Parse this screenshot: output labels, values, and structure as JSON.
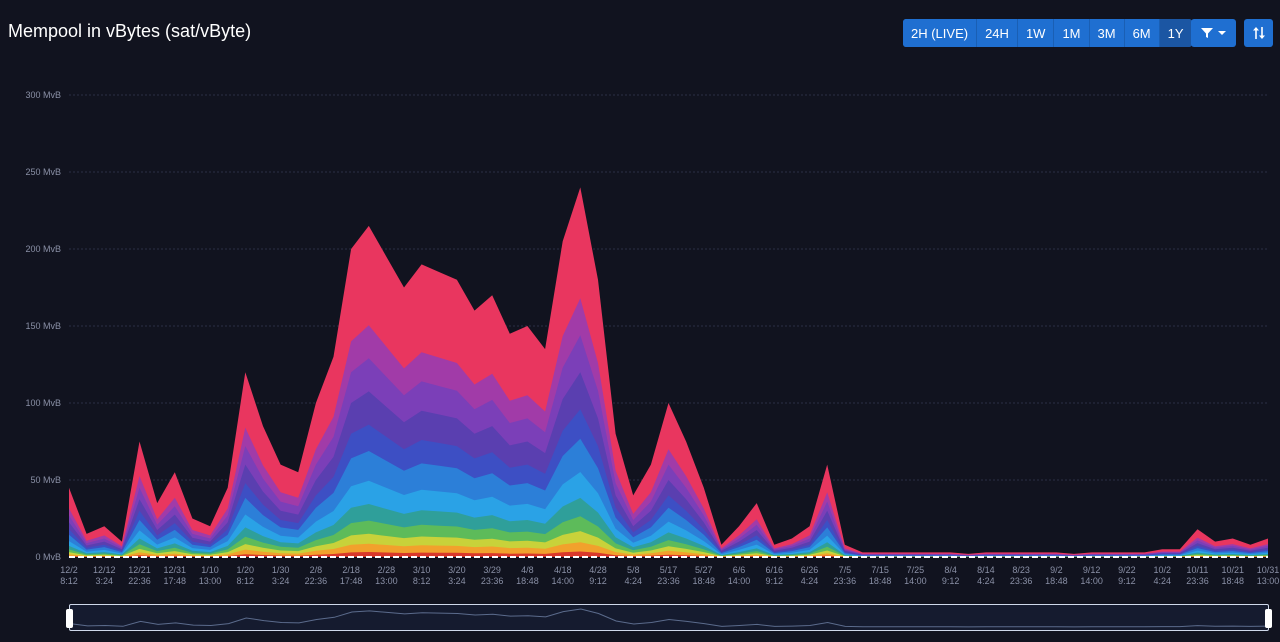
{
  "header": {
    "title": "Mempool in vBytes (sat/vByte)",
    "ranges": [
      {
        "label": "2H (LIVE)",
        "active": false
      },
      {
        "label": "24H",
        "active": false
      },
      {
        "label": "1W",
        "active": false
      },
      {
        "label": "1M",
        "active": false
      },
      {
        "label": "3M",
        "active": false
      },
      {
        "label": "6M",
        "active": false
      },
      {
        "label": "1Y",
        "active": true
      }
    ],
    "filter_icon": "filter-icon",
    "sort_icon": "sort-arrows-icon"
  },
  "colors": {
    "background": "#11131f",
    "accent": "#1f6fd1",
    "bands": [
      "#e9365f",
      "#a13ba8",
      "#7b3fb8",
      "#5a3fb0",
      "#3d4fc4",
      "#2c7fd8",
      "#2aa2e6",
      "#2f9f9a",
      "#5dbb5a",
      "#c8d23a",
      "#f2a12c",
      "#d9382a"
    ]
  },
  "chart_data": {
    "type": "area",
    "stacked": true,
    "title": "Mempool in vBytes (sat/vByte)",
    "ylabel": "",
    "y_unit": "MvB",
    "ylim": [
      0,
      300
    ],
    "yticks": [
      "0 MvB",
      "50 MvB",
      "100 MvB",
      "150 MvB",
      "200 MvB",
      "250 MvB",
      "300 MvB"
    ],
    "grid": true,
    "x_tick_labels": [
      [
        "12/2",
        "8:12"
      ],
      [
        "12/12",
        "3:24"
      ],
      [
        "12/21",
        "22:36"
      ],
      [
        "12/31",
        "17:48"
      ],
      [
        "1/10",
        "13:00"
      ],
      [
        "1/20",
        "8:12"
      ],
      [
        "1/30",
        "3:24"
      ],
      [
        "2/8",
        "22:36"
      ],
      [
        "2/18",
        "17:48"
      ],
      [
        "2/28",
        "13:00"
      ],
      [
        "3/10",
        "8:12"
      ],
      [
        "3/20",
        "3:24"
      ],
      [
        "3/29",
        "23:36"
      ],
      [
        "4/8",
        "18:48"
      ],
      [
        "4/18",
        "14:00"
      ],
      [
        "4/28",
        "9:12"
      ],
      [
        "5/8",
        "4:24"
      ],
      [
        "5/17",
        "23:36"
      ],
      [
        "5/27",
        "18:48"
      ],
      [
        "6/6",
        "14:00"
      ],
      [
        "6/16",
        "9:12"
      ],
      [
        "6/26",
        "4:24"
      ],
      [
        "7/5",
        "23:36"
      ],
      [
        "7/15",
        "18:48"
      ],
      [
        "7/25",
        "14:00"
      ],
      [
        "8/4",
        "9:12"
      ],
      [
        "8/14",
        "4:24"
      ],
      [
        "8/23",
        "23:36"
      ],
      [
        "9/2",
        "18:48"
      ],
      [
        "9/12",
        "14:00"
      ],
      [
        "9/22",
        "9:12"
      ],
      [
        "10/2",
        "4:24"
      ],
      [
        "10/11",
        "23:36"
      ],
      [
        "10/21",
        "18:48"
      ],
      [
        "10/31",
        "13:00"
      ]
    ],
    "x": [
      "12/2",
      "12/7",
      "12/12",
      "12/17",
      "12/21",
      "12/26",
      "12/31",
      "1/5",
      "1/10",
      "1/15",
      "1/20",
      "1/25",
      "1/30",
      "2/4",
      "2/8",
      "2/13",
      "2/18",
      "2/23",
      "2/28",
      "3/5",
      "3/10",
      "3/15",
      "3/20",
      "3/25",
      "3/29",
      "4/3",
      "4/8",
      "4/13",
      "4/18",
      "4/23",
      "4/28",
      "5/3",
      "5/8",
      "5/13",
      "5/17",
      "5/22",
      "5/27",
      "6/1",
      "6/6",
      "6/11",
      "6/16",
      "6/21",
      "6/26",
      "7/1",
      "7/5",
      "7/10",
      "7/15",
      "7/20",
      "7/25",
      "7/30",
      "8/4",
      "8/9",
      "8/14",
      "8/19",
      "8/23",
      "8/28",
      "9/2",
      "9/7",
      "9/12",
      "9/17",
      "9/22",
      "9/27",
      "10/2",
      "10/7",
      "10/11",
      "10/16",
      "10/21",
      "10/26",
      "10/31"
    ],
    "total": [
      45,
      15,
      20,
      10,
      75,
      35,
      55,
      25,
      20,
      45,
      120,
      85,
      60,
      55,
      100,
      130,
      200,
      215,
      195,
      175,
      190,
      185,
      180,
      160,
      170,
      145,
      150,
      135,
      205,
      240,
      180,
      80,
      40,
      60,
      100,
      75,
      45,
      8,
      20,
      35,
      8,
      12,
      20,
      60,
      8,
      3,
      3,
      3,
      3,
      3,
      3,
      2,
      3,
      3,
      3,
      3,
      3,
      2,
      3,
      3,
      3,
      3,
      5,
      5,
      18,
      10,
      12,
      8,
      12
    ],
    "layer_fractions": [
      0.3,
      0.1,
      0.1,
      0.1,
      0.08,
      0.09,
      0.07,
      0.05,
      0.04,
      0.03,
      0.025,
      0.015
    ]
  },
  "navigator": {}
}
